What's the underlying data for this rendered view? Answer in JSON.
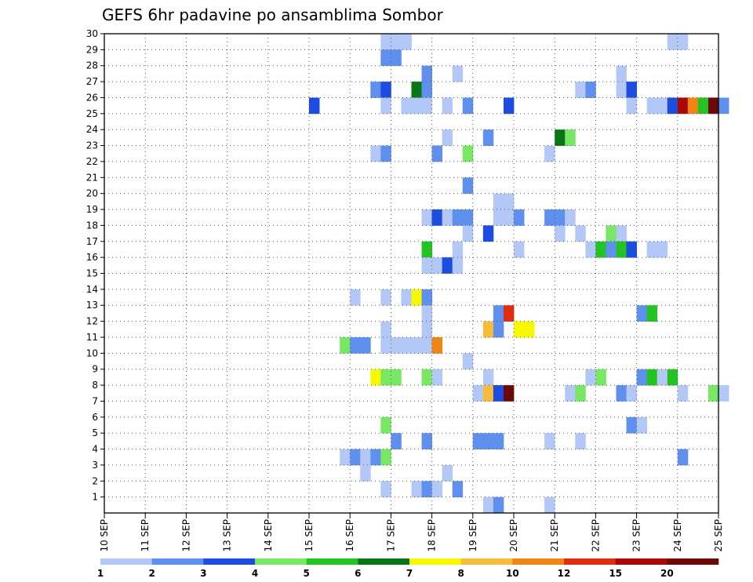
{
  "chart_data": {
    "type": "heatmap",
    "title": "GEFS 6hr padavine po ansamblima Sombor",
    "xlabel": "",
    "ylabel": "",
    "x_ticks": [
      "10 SEP",
      "11 SEP",
      "12 SEP",
      "13 SEP",
      "14 SEP",
      "15 SEP",
      "16 SEP",
      "17 SEP",
      "18 SEP",
      "19 SEP",
      "20 SEP",
      "21 SEP",
      "22 SEP",
      "23 SEP",
      "24 SEP",
      "25 SEP"
    ],
    "xlim_days": [
      10,
      25
    ],
    "steps_per_day": 4,
    "y_ticks": [
      1,
      2,
      3,
      4,
      5,
      6,
      7,
      8,
      9,
      10,
      11,
      12,
      13,
      14,
      15,
      16,
      17,
      18,
      19,
      20,
      21,
      22,
      23,
      24,
      25,
      26,
      27,
      28,
      29,
      30
    ],
    "ylim": [
      0,
      30
    ],
    "grid": true,
    "colorbar": {
      "labels": [
        "1",
        "2",
        "3",
        "4",
        "5",
        "6",
        "7",
        "8",
        "10",
        "12",
        "15",
        "20"
      ],
      "colors": [
        "#b4c8f8",
        "#6090ee",
        "#1c4ce0",
        "#78e864",
        "#22c322",
        "#0a7514",
        "#f8f800",
        "#f8bc3c",
        "#f08414",
        "#e02c10",
        "#a80808",
        "#6c0808"
      ]
    },
    "cell_value_note": "cells: [member, time step index from 10 SEP 00z, precipitation class index 0-11]",
    "cells": [
      [
        29,
        27,
        0
      ],
      [
        29,
        28,
        0
      ],
      [
        29,
        29,
        0
      ],
      [
        29,
        55,
        0
      ],
      [
        29,
        56,
        0
      ],
      [
        28,
        27,
        1
      ],
      [
        28,
        28,
        1
      ],
      [
        27,
        31,
        1
      ],
      [
        27,
        34,
        0
      ],
      [
        27,
        50,
        0
      ],
      [
        26,
        26,
        1
      ],
      [
        26,
        27,
        2
      ],
      [
        26,
        30,
        5
      ],
      [
        26,
        31,
        1
      ],
      [
        26,
        46,
        0
      ],
      [
        26,
        47,
        1
      ],
      [
        26,
        50,
        0
      ],
      [
        26,
        51,
        2
      ],
      [
        25,
        20,
        2
      ],
      [
        25,
        27,
        0
      ],
      [
        25,
        29,
        0
      ],
      [
        25,
        30,
        0
      ],
      [
        25,
        31,
        0
      ],
      [
        25,
        33,
        0
      ],
      [
        25,
        35,
        1
      ],
      [
        25,
        39,
        2
      ],
      [
        25,
        51,
        0
      ],
      [
        25,
        53,
        0
      ],
      [
        25,
        54,
        0
      ],
      [
        25,
        55,
        2
      ],
      [
        25,
        56,
        10
      ],
      [
        25,
        57,
        8
      ],
      [
        25,
        58,
        4
      ],
      [
        25,
        59,
        11
      ],
      [
        25,
        60,
        1
      ],
      [
        23,
        33,
        0
      ],
      [
        23,
        37,
        1
      ],
      [
        23,
        44,
        5
      ],
      [
        23,
        45,
        3
      ],
      [
        22,
        26,
        0
      ],
      [
        22,
        27,
        1
      ],
      [
        22,
        32,
        1
      ],
      [
        22,
        35,
        3
      ],
      [
        22,
        43,
        0
      ],
      [
        20,
        35,
        1
      ],
      [
        19,
        38,
        0
      ],
      [
        19,
        39,
        0
      ],
      [
        18,
        35,
        1
      ],
      [
        18,
        38,
        0
      ],
      [
        18,
        39,
        0
      ],
      [
        18,
        31,
        0
      ],
      [
        18,
        32,
        2
      ],
      [
        18,
        33,
        0
      ],
      [
        18,
        34,
        1
      ],
      [
        18,
        40,
        1
      ],
      [
        18,
        43,
        1
      ],
      [
        18,
        44,
        1
      ],
      [
        18,
        45,
        0
      ],
      [
        17,
        35,
        0
      ],
      [
        17,
        37,
        2
      ],
      [
        17,
        44,
        0
      ],
      [
        17,
        46,
        0
      ],
      [
        17,
        49,
        3
      ],
      [
        17,
        50,
        0
      ],
      [
        16,
        31,
        4
      ],
      [
        16,
        34,
        0
      ],
      [
        16,
        40,
        0
      ],
      [
        16,
        47,
        0
      ],
      [
        16,
        48,
        4
      ],
      [
        16,
        49,
        1
      ],
      [
        16,
        50,
        4
      ],
      [
        16,
        51,
        2
      ],
      [
        16,
        53,
        0
      ],
      [
        16,
        54,
        0
      ],
      [
        15,
        31,
        0
      ],
      [
        15,
        32,
        0
      ],
      [
        15,
        33,
        2
      ],
      [
        15,
        34,
        0
      ],
      [
        13,
        24,
        0
      ],
      [
        13,
        27,
        0
      ],
      [
        13,
        29,
        0
      ],
      [
        13,
        30,
        6
      ],
      [
        13,
        31,
        1
      ],
      [
        12,
        31,
        0
      ],
      [
        12,
        38,
        1
      ],
      [
        12,
        39,
        9
      ],
      [
        12,
        52,
        1
      ],
      [
        12,
        53,
        4
      ],
      [
        11,
        27,
        0
      ],
      [
        11,
        31,
        0
      ],
      [
        11,
        37,
        7
      ],
      [
        11,
        38,
        1
      ],
      [
        11,
        40,
        6
      ],
      [
        11,
        41,
        6
      ],
      [
        10,
        23,
        3
      ],
      [
        10,
        24,
        1
      ],
      [
        10,
        25,
        1
      ],
      [
        10,
        27,
        0
      ],
      [
        10,
        28,
        0
      ],
      [
        10,
        29,
        0
      ],
      [
        10,
        30,
        0
      ],
      [
        10,
        31,
        0
      ],
      [
        10,
        32,
        8
      ],
      [
        9,
        35,
        0
      ],
      [
        8,
        26,
        6
      ],
      [
        8,
        27,
        3
      ],
      [
        8,
        28,
        3
      ],
      [
        8,
        31,
        3
      ],
      [
        8,
        32,
        0
      ],
      [
        8,
        37,
        0
      ],
      [
        8,
        47,
        0
      ],
      [
        8,
        48,
        3
      ],
      [
        8,
        52,
        1
      ],
      [
        8,
        53,
        4
      ],
      [
        8,
        54,
        0
      ],
      [
        8,
        55,
        4
      ],
      [
        7,
        36,
        0
      ],
      [
        7,
        37,
        7
      ],
      [
        7,
        38,
        2
      ],
      [
        7,
        39,
        11
      ],
      [
        7,
        45,
        0
      ],
      [
        7,
        46,
        3
      ],
      [
        7,
        50,
        1
      ],
      [
        7,
        51,
        0
      ],
      [
        7,
        56,
        0
      ],
      [
        7,
        59,
        3
      ],
      [
        7,
        60,
        0
      ],
      [
        5,
        27,
        3
      ],
      [
        5,
        51,
        1
      ],
      [
        5,
        52,
        0
      ],
      [
        4,
        28,
        1
      ],
      [
        4,
        31,
        1
      ],
      [
        4,
        36,
        1
      ],
      [
        4,
        37,
        1
      ],
      [
        4,
        38,
        1
      ],
      [
        4,
        43,
        0
      ],
      [
        4,
        46,
        0
      ],
      [
        3,
        23,
        0
      ],
      [
        3,
        24,
        1
      ],
      [
        3,
        25,
        0
      ],
      [
        3,
        26,
        1
      ],
      [
        3,
        27,
        3
      ],
      [
        3,
        56,
        1
      ],
      [
        2,
        25,
        0
      ],
      [
        2,
        33,
        0
      ],
      [
        1,
        27,
        0
      ],
      [
        1,
        30,
        0
      ],
      [
        1,
        31,
        1
      ],
      [
        1,
        32,
        0
      ],
      [
        1,
        34,
        1
      ],
      [
        0,
        37,
        0
      ],
      [
        0,
        38,
        1
      ],
      [
        0,
        43,
        0
      ]
    ]
  }
}
